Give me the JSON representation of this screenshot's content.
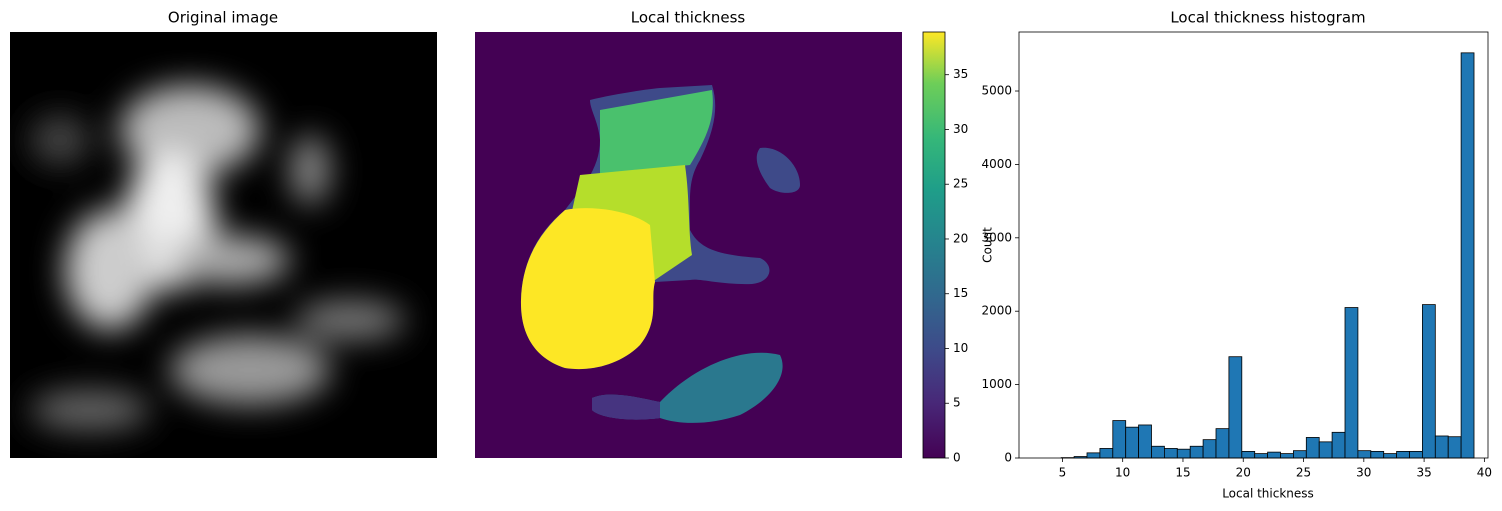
{
  "chart_data": [
    {
      "type": "image",
      "title": "Original image"
    },
    {
      "type": "image",
      "title": "Local thickness",
      "ylim": [
        0,
        38.9
      ],
      "yticks": [
        0,
        5,
        10,
        15,
        20,
        25,
        30,
        35
      ]
    },
    {
      "type": "histogram",
      "title": "Local thickness histogram",
      "xlabel": "Local thickness",
      "ylabel": "Count",
      "color": "#1f77b4",
      "bins": [
        4.9,
        5.97,
        7.04,
        8.11,
        9.18,
        10.25,
        11.32,
        12.39,
        13.46,
        14.53,
        15.6,
        16.67,
        17.74,
        18.81,
        19.88,
        20.95,
        22.02,
        23.09,
        24.16,
        25.23,
        26.3,
        27.37,
        28.44,
        29.51,
        30.58,
        31.65,
        32.72,
        33.79,
        34.86,
        35.93,
        37.0,
        38.07,
        39.14
      ],
      "values": [
        5,
        20,
        70,
        130,
        510,
        420,
        450,
        160,
        130,
        120,
        160,
        250,
        400,
        1380,
        90,
        60,
        80,
        60,
        100,
        280,
        220,
        350,
        2050,
        100,
        90,
        60,
        90,
        90,
        2090,
        300,
        290,
        5520
      ],
      "xlim": [
        1.4,
        40.3
      ],
      "xticks": [
        5,
        10,
        15,
        20,
        25,
        30,
        35,
        40
      ],
      "ylim": [
        0,
        5804
      ],
      "yticks": [
        0,
        1000,
        2000,
        3000,
        4000,
        5000
      ]
    }
  ]
}
